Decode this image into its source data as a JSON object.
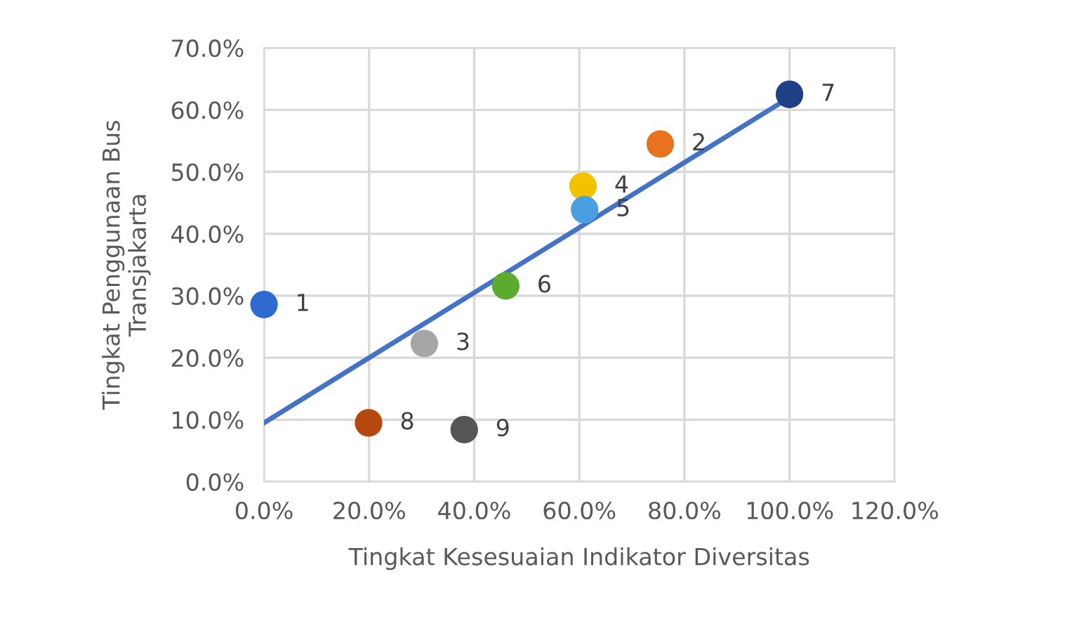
{
  "chart_data": {
    "type": "scatter",
    "xlabel": "Tingkat Kesesuaian Indikator Diversitas",
    "ylabel": "Tingkat Penggunaan Bus\nTransjakarta",
    "series": [
      {
        "x": [
          0,
          75.4,
          30.5,
          60.7,
          61,
          46,
          100,
          19.9,
          38.1
        ],
        "values": [
          28.6,
          54.5,
          22.3,
          47.7,
          43.9,
          31.6,
          62.5,
          9.5,
          8.4
        ],
        "colors": [
          "#2e6bd0",
          "#e8731e",
          "#a6a6a6",
          "#f2c200",
          "#4a9fe0",
          "#5aab2e",
          "#1f3f86",
          "#b5480e",
          "#555555"
        ],
        "marker": "circle"
      },
      {
        "type": "line",
        "x": [
          0,
          100
        ],
        "values": [
          9.5,
          62
        ],
        "color": "#4472c4",
        "line_style": "solid",
        "marker": "none"
      }
    ],
    "annotations": [
      {
        "text": "1",
        "x": 0,
        "y": 28.6
      },
      {
        "text": "2",
        "x": 75.4,
        "y": 54.5
      },
      {
        "text": "3",
        "x": 30.5,
        "y": 22.3
      },
      {
        "text": "4",
        "x": 60.7,
        "y": 47.7
      },
      {
        "text": "5",
        "x": 61,
        "y": 43.9
      },
      {
        "text": "6",
        "x": 46,
        "y": 31.6
      },
      {
        "text": "7",
        "x": 100,
        "y": 62.5
      },
      {
        "text": "8",
        "x": 19.9,
        "y": 9.5
      },
      {
        "text": "9",
        "x": 38.1,
        "y": 8.4
      }
    ],
    "xlim": [
      0,
      120
    ],
    "ylim": [
      0,
      70
    ],
    "xticks": [
      {
        "value": 0,
        "label": "0.0%"
      },
      {
        "value": 20,
        "label": "20.0%"
      },
      {
        "value": 40,
        "label": "40.0%"
      },
      {
        "value": 60,
        "label": "60.0%"
      },
      {
        "value": 80,
        "label": "80.0%"
      },
      {
        "value": 100,
        "label": "100.0%"
      },
      {
        "value": 120,
        "label": "120.0%"
      }
    ],
    "yticks": [
      {
        "value": 0,
        "label": "0.0%"
      },
      {
        "value": 10,
        "label": "10.0%"
      },
      {
        "value": 20,
        "label": "20.0%"
      },
      {
        "value": 30,
        "label": "30.0%"
      },
      {
        "value": 40,
        "label": "40.0%"
      },
      {
        "value": 50,
        "label": "50.0%"
      },
      {
        "value": 60,
        "label": "60.0%"
      },
      {
        "value": 70,
        "label": "70.0%"
      }
    ],
    "grid": true,
    "legend": false
  }
}
